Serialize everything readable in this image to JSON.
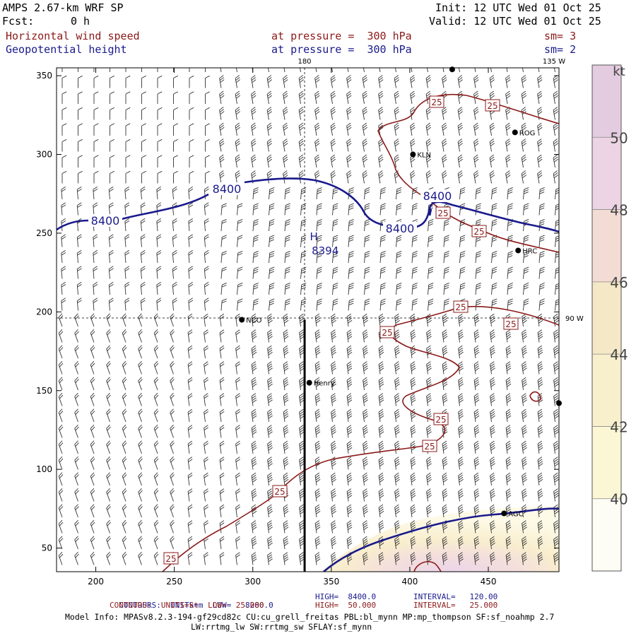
{
  "header": {
    "model": "AMPS 2.67-km WRF SP",
    "forecast_label": "Fcst:",
    "forecast_value": "0 h",
    "init": "Init: 12 UTC Wed 01 Oct 25",
    "valid": "Valid: 12 UTC Wed 01 Oct 25",
    "field1_name": "Horizontal wind speed",
    "field1_level": "at pressure =  300 hPa",
    "field1_sm": "sm= 3",
    "field2_name": "Geopotential height",
    "field2_level": "at pressure =  300 hPa",
    "field2_sm": "sm= 2"
  },
  "chart_data": {
    "type": "contour-map",
    "xlim": [
      175,
      495
    ],
    "ylim": [
      35,
      355
    ],
    "x_ticks": [
      200,
      250,
      300,
      350,
      400,
      450
    ],
    "y_ticks": [
      50,
      100,
      150,
      200,
      250,
      300,
      350
    ],
    "meridian_labels": {
      "top": "180",
      "top_right": "135 W",
      "right": "90 W"
    },
    "colorbar": {
      "unit": "kt",
      "levels": [
        40,
        42,
        44,
        46,
        48,
        50
      ],
      "colors": [
        "#fefdf5",
        "#fbf6d4",
        "#f8f0cc",
        "#f5e8c6",
        "#f3dcd4",
        "#ecd4e4",
        "#e4cce0"
      ]
    },
    "stations": [
      {
        "name": "ROG",
        "x": 467,
        "y": 314
      },
      {
        "name": "KLN",
        "x": 402,
        "y": 300
      },
      {
        "name": "HRC",
        "x": 469,
        "y": 239
      },
      {
        "name": "NCO",
        "x": 293,
        "y": 195
      },
      {
        "name": "Henry",
        "x": 336,
        "y": 155
      },
      {
        "name": "AGC",
        "x": 460,
        "y": 72
      },
      {
        "name": "",
        "x": 495,
        "y": 142
      },
      {
        "name": "",
        "x": 427,
        "y": 354
      }
    ],
    "height_contours": {
      "label": "8400",
      "high": {
        "label": "H",
        "value": "8394",
        "x": 338,
        "y": 242
      }
    },
    "wind_contour_label": "25",
    "henry_line": {
      "x": 333,
      "y0": 35,
      "y1": 195
    }
  },
  "footer": {
    "line1_left": "CONTOURS:  UNITS=m  LOW=   8280.0",
    "line1_mid": "HIGH=  8400.0",
    "line1_right": "INTERVAL=   120.00",
    "line2_left": "CONTOURS:  UNITS=kt  LOW=  25.000",
    "line2_mid": "HIGH=  50.000",
    "line2_right": "INTERVAL=   25.000",
    "model_info": "Model Info: MPASv8.2.3-194-gf29cd82c CU:cu_grell_freitas PBL:bl_mynn MP:mp_thompson SF:sf_noahmp 2.7",
    "model_info2": "LW:rrtmg_lw SW:rrtmg_sw SFLAY:sf_mynn"
  }
}
